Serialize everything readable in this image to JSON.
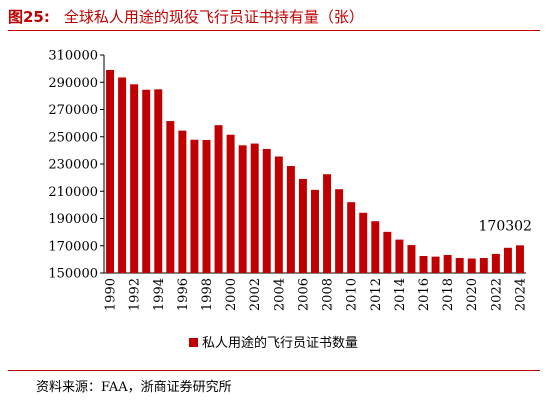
{
  "header": {
    "figure_label": "图25:",
    "title": "全球私人用途的现役飞行员证书持有量（张）"
  },
  "source": "资料来源：FAA，浙商证券研究所",
  "colors": {
    "accent": "#c00000",
    "bar": "#c00000"
  },
  "chart_data": {
    "type": "bar",
    "title": "全球私人用途的现役飞行员证书持有量（张）",
    "categories": [
      "1990",
      "1991",
      "1992",
      "1993",
      "1994",
      "1995",
      "1996",
      "1997",
      "1998",
      "1999",
      "2000",
      "2001",
      "2002",
      "2003",
      "2004",
      "2005",
      "2006",
      "2007",
      "2008",
      "2009",
      "2010",
      "2011",
      "2012",
      "2013",
      "2014",
      "2015",
      "2016",
      "2017",
      "2018",
      "2019",
      "2020",
      "2021",
      "2022",
      "2023",
      "2024"
    ],
    "series": [
      {
        "name": "私人用途的飞行员证书数量",
        "values": [
          299000,
          293500,
          288500,
          284500,
          284800,
          261500,
          254500,
          247800,
          247600,
          258500,
          251500,
          243700,
          245000,
          241000,
          235500,
          228500,
          219000,
          211000,
          222500,
          211500,
          202000,
          194200,
          188000,
          180200,
          174500,
          170500,
          162500,
          162000,
          163200,
          161000,
          160600,
          161000,
          164000,
          168500,
          170302
        ]
      }
    ],
    "xlabel": "",
    "ylabel": "",
    "ylim": [
      150000,
      310000
    ],
    "yticks": [
      150000,
      170000,
      190000,
      210000,
      230000,
      250000,
      270000,
      290000,
      310000
    ],
    "xtick_labels": [
      "1990",
      "1992",
      "1994",
      "1996",
      "1998",
      "2000",
      "2002",
      "2004",
      "2006",
      "2008",
      "2010",
      "2012",
      "2014",
      "2016",
      "2018",
      "2020",
      "2022",
      "2024"
    ],
    "annotations": [
      {
        "category": "2024",
        "text": "170302"
      }
    ],
    "legend": {
      "position": "bottom-left",
      "marker": "square"
    },
    "grid": false
  }
}
